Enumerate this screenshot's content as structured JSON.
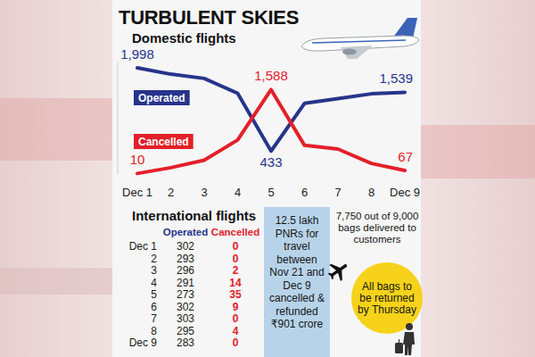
{
  "title": "TURBULENT SKIES",
  "chart_data": {
    "type": "line",
    "title": "Domestic flights",
    "categories": [
      "Dec 1",
      "2",
      "3",
      "4",
      "5",
      "6",
      "7",
      "8",
      "Dec 9"
    ],
    "series": [
      {
        "name": "Operated",
        "color": "#27348b",
        "values": [
          1998,
          1880,
          1800,
          1520,
          433,
          1330,
          1420,
          1510,
          1539
        ],
        "value_labels": [
          "1,998",
          null,
          null,
          null,
          "433",
          null,
          null,
          null,
          "1,539"
        ]
      },
      {
        "name": "Cancelled",
        "color": "#e3202a",
        "values": [
          10,
          120,
          260,
          640,
          1588,
          540,
          470,
          200,
          67
        ],
        "value_labels": [
          "10",
          null,
          null,
          null,
          "1,588",
          null,
          null,
          null,
          "67"
        ]
      }
    ],
    "ylim": [
      0,
      2100
    ],
    "data_labels": true,
    "tick_labels": "x"
  },
  "table": {
    "title": "International flights",
    "columns": [
      "Operated",
      "Cancelled"
    ],
    "rows": [
      [
        "Dec 1",
        302,
        0
      ],
      [
        "2",
        293,
        0
      ],
      [
        "3",
        296,
        2
      ],
      [
        "4",
        291,
        14
      ],
      [
        "5",
        273,
        35
      ],
      [
        "6",
        302,
        9
      ],
      [
        "7",
        303,
        0
      ],
      [
        "8",
        295,
        4
      ],
      [
        "Dec 9",
        283,
        0
      ]
    ]
  },
  "notes": {
    "pnr": "12.5 lakh PNRs for travel between Nov 21 and Dec 9 cancelled & refunded ₹901 crore",
    "bags": "7,750 out of 9,000 bags delivered to customers",
    "callout": "All bags to be returned by Thursday"
  }
}
